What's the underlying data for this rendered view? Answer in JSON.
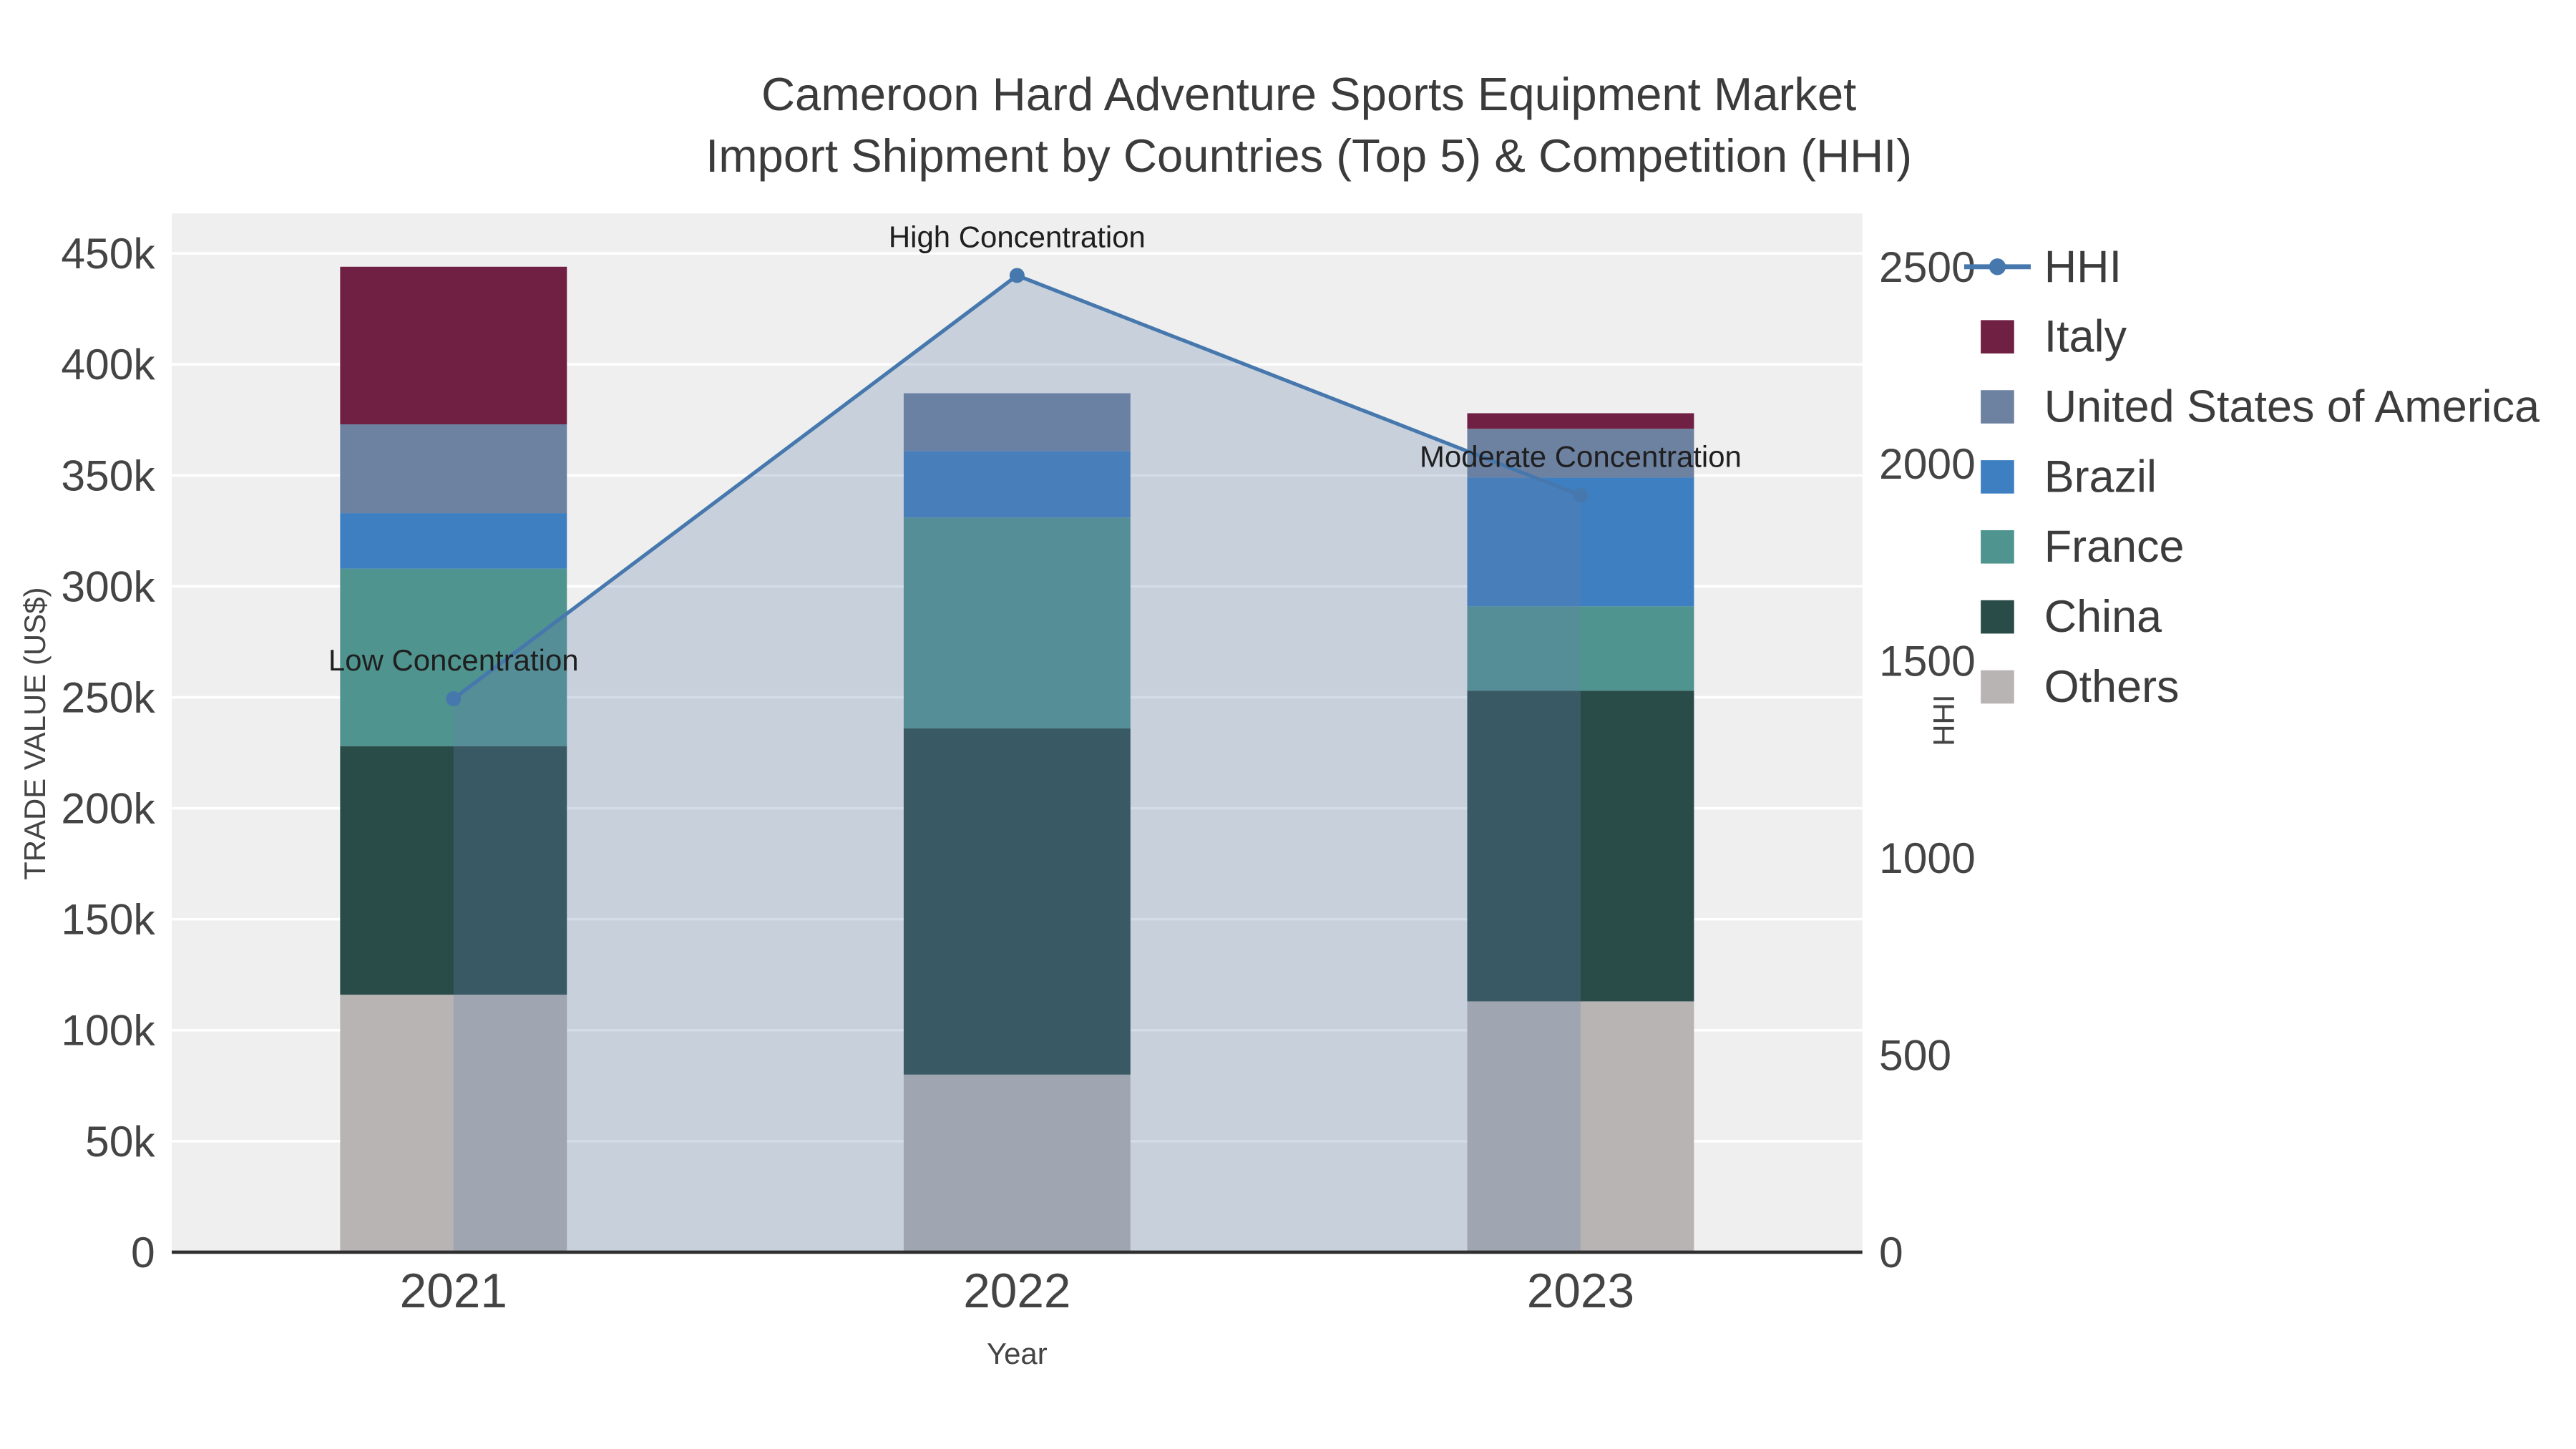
{
  "title": {
    "line1": "Cameroon Hard Adventure Sports Equipment Market",
    "line2": "Import Shipment by Countries (Top 5) & Competition (HHI)"
  },
  "chart_data": {
    "type": "bar",
    "subtype": "stacked-bars-with-hhi-line-and-area",
    "x_axis": {
      "title": "Year",
      "categories": [
        "2021",
        "2022",
        "2023"
      ]
    },
    "left_axis": {
      "title": "TRADE VALUE (US$)",
      "max": 450000,
      "tick_values": [
        0,
        50000,
        100000,
        150000,
        200000,
        250000,
        300000,
        350000,
        400000,
        450000
      ],
      "tick_labels": [
        "0",
        "50k",
        "100k",
        "150k",
        "200k",
        "250k",
        "300k",
        "350k",
        "400k",
        "450k"
      ]
    },
    "right_axis": {
      "title": "HHI",
      "max": 2500,
      "tick_values": [
        0,
        500,
        1000,
        1500,
        2000,
        2500
      ],
      "tick_labels": [
        "0",
        "500",
        "1000",
        "1500",
        "2000",
        "2500"
      ]
    },
    "series": [
      {
        "name": "Italy",
        "color": "#6f2043",
        "values": [
          71000,
          0,
          7000
        ]
      },
      {
        "name": "United States of America",
        "color": "#6d81a1",
        "values": [
          40000,
          26000,
          22000
        ]
      },
      {
        "name": "Brazil",
        "color": "#3e7fc1",
        "values": [
          25000,
          30000,
          58000
        ]
      },
      {
        "name": "France",
        "color": "#4f948f",
        "values": [
          80000,
          95000,
          38000
        ]
      },
      {
        "name": "China",
        "color": "#294c48",
        "values": [
          112000,
          156000,
          140000
        ]
      },
      {
        "name": "Others",
        "color": "#b8b4b3",
        "values": [
          116000,
          80000,
          113000
        ]
      }
    ],
    "stack_order_bottom_to_top": [
      "Others",
      "China",
      "France",
      "Brazil",
      "United States of America",
      "Italy"
    ],
    "hhi": {
      "name": "HHI",
      "color": "#4678ad",
      "fill": "rgba(101,131,171,0.28)",
      "axis": "right",
      "values": [
        1404,
        2478,
        1920
      ]
    },
    "annotations": [
      {
        "text": "Low Concentration",
        "category": "2021",
        "hhi": 1404
      },
      {
        "text": "High Concentration",
        "category": "2022",
        "hhi": 2478
      },
      {
        "text": "Moderate Concentration",
        "category": "2023",
        "hhi": 1920
      }
    ],
    "legend": [
      {
        "label": "HHI",
        "swatch": "line",
        "color": "#4678ad"
      },
      {
        "label": "Italy",
        "swatch": "square",
        "color": "#6f2043"
      },
      {
        "label": "United States of America",
        "swatch": "square",
        "color": "#6d81a1"
      },
      {
        "label": "Brazil",
        "swatch": "square",
        "color": "#3e7fc1"
      },
      {
        "label": "France",
        "swatch": "square",
        "color": "#4f948f"
      },
      {
        "label": "China",
        "swatch": "square",
        "color": "#294c48"
      },
      {
        "label": "Others",
        "swatch": "square",
        "color": "#b8b4b3"
      }
    ],
    "style": {
      "plot_background": "#efefef",
      "grid": "#ffffff",
      "axis_text": "#444444",
      "axis_line": "#2f2f2f",
      "title_color": "#3b3b3b",
      "annotation_color": "#1f1f1f",
      "legend_text": "#3c3c3c"
    }
  }
}
